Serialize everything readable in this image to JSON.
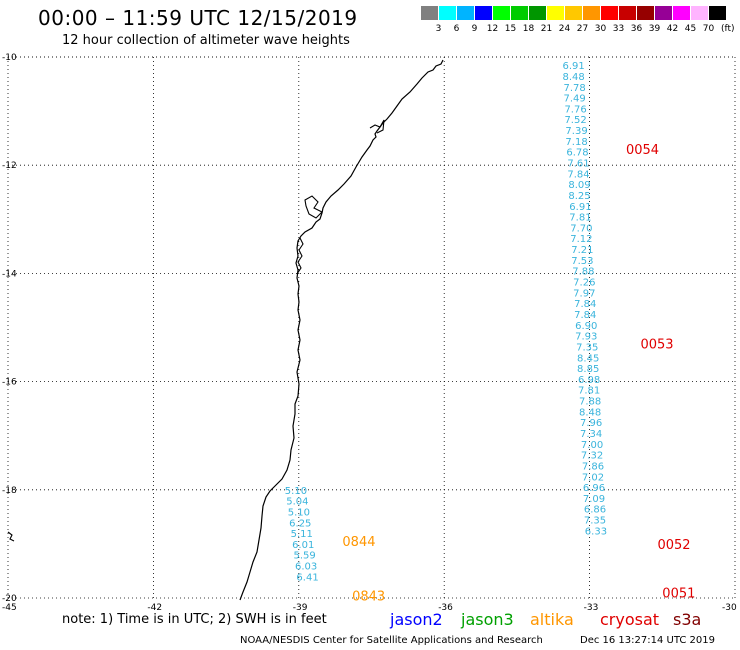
{
  "title": "00:00 – 11:59 UTC 12/15/2019",
  "subtitle": "12 hour collection of altimeter wave heights",
  "colorbar": {
    "cells": [
      {
        "color": "#808080",
        "label": "3"
      },
      {
        "color": "#00ffff",
        "label": "6"
      },
      {
        "color": "#00b4ff",
        "label": "9"
      },
      {
        "color": "#0000ff",
        "label": "12"
      },
      {
        "color": "#00ff00",
        "label": "15"
      },
      {
        "color": "#00cc00",
        "label": "18"
      },
      {
        "color": "#009600",
        "label": "21"
      },
      {
        "color": "#ffff00",
        "label": "24"
      },
      {
        "color": "#ffc800",
        "label": "27"
      },
      {
        "color": "#ff9600",
        "label": "30"
      },
      {
        "color": "#ff0000",
        "label": "33"
      },
      {
        "color": "#c80000",
        "label": "36"
      },
      {
        "color": "#960000",
        "label": "39"
      },
      {
        "color": "#960096",
        "label": "42"
      },
      {
        "color": "#ff00ff",
        "label": "45"
      },
      {
        "color": "#ffb4ff",
        "label": "70"
      },
      {
        "color": "#000000",
        "label": ""
      }
    ],
    "unit": "(ft)"
  },
  "axes": {
    "lat_ticks": [
      "-10",
      "-12",
      "-14",
      "-16",
      "-18",
      "-20"
    ],
    "lon_ticks": [
      "-45",
      "-42",
      "-39",
      "-36",
      "-33",
      "-30"
    ],
    "lon_range": [
      -45,
      -30
    ],
    "lat_range": [
      -20,
      -10
    ]
  },
  "tracks": {
    "track1": {
      "color": "#3ab4dc",
      "points": [
        {
          "lat": -10.15,
          "lon": -33.27,
          "v": "6.91"
        },
        {
          "lat": -10.35,
          "lon": -33.27,
          "v": "8.48"
        },
        {
          "lat": -10.55,
          "lon": -33.25,
          "v": "7.78"
        },
        {
          "lat": -10.75,
          "lon": -33.25,
          "v": "7.49"
        },
        {
          "lat": -10.95,
          "lon": -33.23,
          "v": "7.76"
        },
        {
          "lat": -11.15,
          "lon": -33.23,
          "v": "7.52"
        },
        {
          "lat": -11.35,
          "lon": -33.21,
          "v": "7.39"
        },
        {
          "lat": -11.55,
          "lon": -33.21,
          "v": "7.18"
        },
        {
          "lat": -11.75,
          "lon": -33.19,
          "v": "6.78"
        },
        {
          "lat": -11.95,
          "lon": -33.17,
          "v": "7.61"
        },
        {
          "lat": -12.15,
          "lon": -33.17,
          "v": "7.84"
        },
        {
          "lat": -12.35,
          "lon": -33.15,
          "v": "8.09"
        },
        {
          "lat": -12.55,
          "lon": -33.15,
          "v": "8.25"
        },
        {
          "lat": -12.75,
          "lon": -33.13,
          "v": "6.91"
        },
        {
          "lat": -12.95,
          "lon": -33.13,
          "v": "7.81"
        },
        {
          "lat": -13.15,
          "lon": -33.11,
          "v": "7.70"
        },
        {
          "lat": -13.35,
          "lon": -33.11,
          "v": "7.12"
        },
        {
          "lat": -13.55,
          "lon": -33.09,
          "v": "7.21"
        },
        {
          "lat": -13.75,
          "lon": -33.09,
          "v": "7.53"
        },
        {
          "lat": -13.95,
          "lon": -33.07,
          "v": "7.88"
        },
        {
          "lat": -14.15,
          "lon": -33.05,
          "v": "7.26"
        },
        {
          "lat": -14.35,
          "lon": -33.05,
          "v": "7.97"
        },
        {
          "lat": -14.55,
          "lon": -33.03,
          "v": "7.84"
        },
        {
          "lat": -14.75,
          "lon": -33.03,
          "v": "7.84"
        },
        {
          "lat": -14.95,
          "lon": -33.01,
          "v": "6.90"
        },
        {
          "lat": -15.15,
          "lon": -33.01,
          "v": "7.93"
        },
        {
          "lat": -15.35,
          "lon": -32.99,
          "v": "7.35"
        },
        {
          "lat": -15.55,
          "lon": -32.97,
          "v": "8.45"
        },
        {
          "lat": -15.75,
          "lon": -32.97,
          "v": "8.85"
        },
        {
          "lat": -15.95,
          "lon": -32.95,
          "v": "6.98"
        },
        {
          "lat": -16.15,
          "lon": -32.95,
          "v": "7.81"
        },
        {
          "lat": -16.35,
          "lon": -32.93,
          "v": "7.88"
        },
        {
          "lat": -16.55,
          "lon": -32.93,
          "v": "8.48"
        },
        {
          "lat": -16.75,
          "lon": -32.91,
          "v": "7.96"
        },
        {
          "lat": -16.95,
          "lon": -32.91,
          "v": "7.34"
        },
        {
          "lat": -17.15,
          "lon": -32.89,
          "v": "7.00"
        },
        {
          "lat": -17.35,
          "lon": -32.89,
          "v": "7.32"
        },
        {
          "lat": -17.55,
          "lon": -32.87,
          "v": "7.86"
        },
        {
          "lat": -17.75,
          "lon": -32.87,
          "v": "7.02"
        },
        {
          "lat": -17.95,
          "lon": -32.85,
          "v": "6.96"
        },
        {
          "lat": -18.15,
          "lon": -32.85,
          "v": "7.09"
        },
        {
          "lat": -18.35,
          "lon": -32.83,
          "v": "6.86"
        },
        {
          "lat": -18.55,
          "lon": -32.83,
          "v": "7.35"
        },
        {
          "lat": -18.75,
          "lon": -32.81,
          "v": "6.33"
        }
      ]
    },
    "track2": {
      "color": "#3ab4dc",
      "points": [
        {
          "lat": -18.0,
          "lon": -39.0,
          "v": "5.10"
        },
        {
          "lat": -18.2,
          "lon": -38.97,
          "v": "5.04"
        },
        {
          "lat": -18.4,
          "lon": -38.94,
          "v": "5.10"
        },
        {
          "lat": -18.6,
          "lon": -38.91,
          "v": "6.25"
        },
        {
          "lat": -18.8,
          "lon": -38.88,
          "v": "5.11"
        },
        {
          "lat": -19.0,
          "lon": -38.85,
          "v": "6.01"
        },
        {
          "lat": -19.2,
          "lon": -38.82,
          "v": "5.59"
        },
        {
          "lat": -19.4,
          "lon": -38.79,
          "v": "6.03"
        },
        {
          "lat": -19.6,
          "lon": -38.76,
          "v": "6.41"
        }
      ]
    }
  },
  "timecodes": [
    {
      "text": "0054",
      "color": "#e00000",
      "lat": -11.7,
      "lon": -32.25
    },
    {
      "text": "0053",
      "color": "#e00000",
      "lat": -15.3,
      "lon": -31.95
    },
    {
      "text": "0052",
      "color": "#e00000",
      "lat": -19.0,
      "lon": -31.6
    },
    {
      "text": "0051",
      "color": "#e00000",
      "lat": -19.9,
      "lon": -31.5
    },
    {
      "text": "0844",
      "color": "#ff9600",
      "lat": -18.95,
      "lon": -38.1
    },
    {
      "text": "0843",
      "color": "#ff9600",
      "lat": -19.95,
      "lon": -37.9
    }
  ],
  "note": "note: 1) Time is in UTC; 2) SWH is in feet",
  "legend": [
    {
      "label": "jason2",
      "color": "#0000ff"
    },
    {
      "label": "jason3",
      "color": "#00a000"
    },
    {
      "label": "altika",
      "color": "#ff9600"
    },
    {
      "label": "cryosat",
      "color": "#e00000"
    },
    {
      "label": "s3a",
      "color": "#800000"
    }
  ],
  "credit": "NOAA/NESDIS Center for Satellite Applications and Research",
  "timestamp": "Dec 16 13:27:14 UTC 2019"
}
